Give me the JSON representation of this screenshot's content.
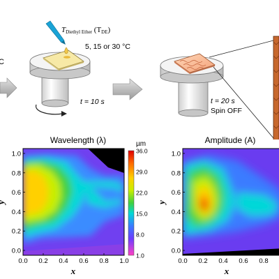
{
  "schematic": {
    "step1": {
      "partial_left_label": "C",
      "dropper_label_prefix": "T",
      "dropper_label_sub": "Diethyl Ether",
      "dropper_label_paren": "(T",
      "dropper_label_paren_sub": "DE",
      "dropper_label_close": ")",
      "temperatures": "5, 15 or 30 °C",
      "time": "t = 10 s"
    },
    "step2": {
      "time": "t = 20 s",
      "spin": "Spin OFF"
    }
  },
  "chart_data": [
    {
      "type": "heatmap",
      "title": "Wavelength (λ)",
      "xlabel": "x",
      "ylabel": "y",
      "xlim": [
        0.0,
        1.0
      ],
      "ylim": [
        -0.05,
        1.05
      ],
      "xticks": [
        "0.0",
        "0.2",
        "0.4",
        "0.6",
        "0.8",
        "1.0"
      ],
      "yticks": [
        "0.0",
        "0.2",
        "0.4",
        "0.6",
        "0.8",
        "1.0"
      ],
      "colorbar": {
        "unit": "µm",
        "ticks": [
          "36.0",
          "29.0",
          "22.0",
          "15.0",
          "8.0",
          "1.0"
        ],
        "colors": [
          "#e00000",
          "#ff6a00",
          "#ffd000",
          "#c8ee00",
          "#40d040",
          "#00d8d8",
          "#3a7cff",
          "#6b3cff",
          "#c040e0",
          "#ff40c0"
        ]
      }
    },
    {
      "type": "heatmap",
      "title": "Amplitude (A)",
      "xlabel": "x",
      "ylabel": "y",
      "xlim": [
        0.0,
        1.0
      ],
      "ylim": [
        -0.05,
        1.05
      ],
      "xticks": [
        "0.0",
        "0.2",
        "0.4",
        "0.6",
        "0.8"
      ],
      "yticks": [
        "0.0",
        "0.2",
        "0.4",
        "0.6",
        "0.8",
        "1.0"
      ]
    }
  ]
}
